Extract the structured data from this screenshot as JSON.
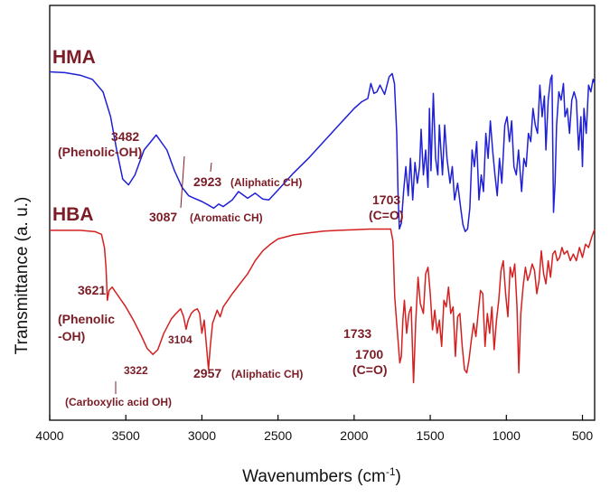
{
  "chart_data": {
    "type": "line",
    "title": "",
    "xlabel": "Wavenumbers (cm",
    "xlabel_sup": "-1",
    "xlabel_close": ")",
    "ylabel": "Transmittance (a. u.)",
    "xlim": [
      4000,
      420
    ],
    "x_ticks": [
      4000,
      3500,
      3000,
      2500,
      2000,
      1500,
      1000,
      500
    ],
    "x_tick_labels": [
      "4000",
      "3500",
      "3000",
      "2500",
      "2000",
      "1500",
      "1000",
      "500"
    ],
    "y_units": "arbitrary (offset, no tick labels)",
    "series": [
      {
        "name": "HMA",
        "color": "#1f1fd6",
        "points": [
          [
            4000,
            0.6
          ],
          [
            3900,
            0.7
          ],
          [
            3800,
            1.0
          ],
          [
            3720,
            1.5
          ],
          [
            3650,
            3.0
          ],
          [
            3600,
            6.0
          ],
          [
            3560,
            10.0
          ],
          [
            3520,
            13.5
          ],
          [
            3482,
            14.2
          ],
          [
            3440,
            13.0
          ],
          [
            3380,
            10.0
          ],
          [
            3300,
            8.2
          ],
          [
            3230,
            10.0
          ],
          [
            3180,
            12.5
          ],
          [
            3130,
            14.5
          ],
          [
            3087,
            15.5
          ],
          [
            3050,
            15.8
          ],
          [
            3000,
            16.2
          ],
          [
            2960,
            16.6
          ],
          [
            2923,
            17.0
          ],
          [
            2890,
            16.5
          ],
          [
            2860,
            16.8
          ],
          [
            2800,
            16.0
          ],
          [
            2760,
            15.0
          ],
          [
            2700,
            15.8
          ],
          [
            2650,
            15.2
          ],
          [
            2600,
            15.9
          ],
          [
            2560,
            16.0
          ],
          [
            2500,
            14.8
          ],
          [
            2400,
            12.8
          ],
          [
            2300,
            11.0
          ],
          [
            2200,
            9.0
          ],
          [
            2100,
            7.0
          ],
          [
            2000,
            5.0
          ],
          [
            1950,
            4.2
          ],
          [
            1910,
            3.8
          ],
          [
            1890,
            2.0
          ],
          [
            1870,
            3.2
          ],
          [
            1850,
            3.0
          ],
          [
            1830,
            2.2
          ],
          [
            1800,
            3.3
          ],
          [
            1770,
            1.2
          ],
          [
            1750,
            0.8
          ],
          [
            1735,
            2.0
          ],
          [
            1720,
            8.0
          ],
          [
            1712,
            15.0
          ],
          [
            1703,
            19.5
          ],
          [
            1690,
            18.8
          ],
          [
            1675,
            15.0
          ],
          [
            1660,
            12.0
          ],
          [
            1645,
            15.5
          ],
          [
            1630,
            11.0
          ],
          [
            1615,
            16.0
          ],
          [
            1600,
            11.5
          ],
          [
            1585,
            14.0
          ],
          [
            1570,
            12.0
          ],
          [
            1560,
            7.5
          ],
          [
            1545,
            13.0
          ],
          [
            1530,
            10.0
          ],
          [
            1515,
            14.5
          ],
          [
            1505,
            5.0
          ],
          [
            1495,
            12.5
          ],
          [
            1480,
            3.2
          ],
          [
            1465,
            11.0
          ],
          [
            1450,
            13.0
          ],
          [
            1440,
            7.0
          ],
          [
            1420,
            13.0
          ],
          [
            1405,
            7.0
          ],
          [
            1390,
            11.0
          ],
          [
            1370,
            14.0
          ],
          [
            1355,
            12.0
          ],
          [
            1340,
            16.0
          ],
          [
            1320,
            14.0
          ],
          [
            1300,
            17.0
          ],
          [
            1285,
            19.0
          ],
          [
            1270,
            19.8
          ],
          [
            1255,
            19.5
          ],
          [
            1240,
            17.0
          ],
          [
            1225,
            10.0
          ],
          [
            1210,
            12.0
          ],
          [
            1195,
            9.0
          ],
          [
            1180,
            16.0
          ],
          [
            1165,
            13.0
          ],
          [
            1150,
            15.0
          ],
          [
            1135,
            8.0
          ],
          [
            1120,
            11.0
          ],
          [
            1105,
            6.5
          ],
          [
            1090,
            10.0
          ],
          [
            1075,
            13.0
          ],
          [
            1060,
            15.5
          ],
          [
            1045,
            11.0
          ],
          [
            1030,
            14.0
          ],
          [
            1010,
            7.0
          ],
          [
            995,
            6.0
          ],
          [
            980,
            9.0
          ],
          [
            965,
            6.5
          ],
          [
            950,
            12.0
          ],
          [
            935,
            13.0
          ],
          [
            920,
            10.0
          ],
          [
            900,
            15.0
          ],
          [
            885,
            11.0
          ],
          [
            870,
            12.0
          ],
          [
            855,
            8.0
          ],
          [
            840,
            9.0
          ],
          [
            825,
            5.0
          ],
          [
            810,
            7.0
          ],
          [
            795,
            8.0
          ],
          [
            780,
            2.2
          ],
          [
            765,
            6.0
          ],
          [
            750,
            3.5
          ],
          [
            740,
            10.0
          ],
          [
            725,
            4.0
          ],
          [
            710,
            1.5
          ],
          [
            700,
            1.0
          ],
          [
            690,
            17.5
          ],
          [
            680,
            14.0
          ],
          [
            670,
            7.0
          ],
          [
            655,
            3.0
          ],
          [
            640,
            4.0
          ],
          [
            625,
            2.0
          ],
          [
            615,
            6.0
          ],
          [
            600,
            5.0
          ],
          [
            585,
            8.0
          ],
          [
            570,
            4.0
          ],
          [
            555,
            3.0
          ],
          [
            540,
            4.0
          ],
          [
            525,
            10.0
          ],
          [
            510,
            6.0
          ],
          [
            500,
            12.0
          ],
          [
            490,
            5.0
          ],
          [
            475,
            8.0
          ],
          [
            460,
            2.2
          ],
          [
            445,
            3.0
          ],
          [
            430,
            1.5
          ],
          [
            420,
            2.0
          ]
        ]
      },
      {
        "name": "HBA",
        "color": "#d42020",
        "points": [
          [
            4000,
            0.4
          ],
          [
            3900,
            0.4
          ],
          [
            3800,
            0.4
          ],
          [
            3700,
            0.6
          ],
          [
            3660,
            1.0
          ],
          [
            3640,
            3.0
          ],
          [
            3630,
            6.0
          ],
          [
            3621,
            11.0
          ],
          [
            3610,
            9.5
          ],
          [
            3590,
            9.0
          ],
          [
            3560,
            10.0
          ],
          [
            3500,
            12.0
          ],
          [
            3450,
            14.0
          ],
          [
            3400,
            16.3
          ],
          [
            3360,
            18.3
          ],
          [
            3322,
            19.2
          ],
          [
            3290,
            18.5
          ],
          [
            3250,
            16.0
          ],
          [
            3200,
            13.8
          ],
          [
            3170,
            13.0
          ],
          [
            3140,
            12.3
          ],
          [
            3120,
            13.5
          ],
          [
            3104,
            15.4
          ],
          [
            3090,
            14.0
          ],
          [
            3070,
            13.0
          ],
          [
            3050,
            12.5
          ],
          [
            3030,
            12.3
          ],
          [
            3015,
            13.0
          ],
          [
            3000,
            16.0
          ],
          [
            2985,
            14.0
          ],
          [
            2972,
            17.5
          ],
          [
            2957,
            21.5
          ],
          [
            2945,
            18.0
          ],
          [
            2930,
            14.5
          ],
          [
            2900,
            12.5
          ],
          [
            2880,
            13.5
          ],
          [
            2860,
            12.0
          ],
          [
            2800,
            10.0
          ],
          [
            2750,
            8.5
          ],
          [
            2700,
            7.0
          ],
          [
            2650,
            5.0
          ],
          [
            2600,
            3.5
          ],
          [
            2550,
            2.5
          ],
          [
            2500,
            1.7
          ],
          [
            2400,
            1.1
          ],
          [
            2300,
            0.8
          ],
          [
            2200,
            0.5
          ],
          [
            2100,
            0.4
          ],
          [
            2000,
            0.3
          ],
          [
            1900,
            0.2
          ],
          [
            1800,
            0.2
          ],
          [
            1760,
            0.2
          ],
          [
            1745,
            2.0
          ],
          [
            1733,
            10.5
          ],
          [
            1720,
            14.5
          ],
          [
            1700,
            20.5
          ],
          [
            1690,
            19.5
          ],
          [
            1680,
            14.0
          ],
          [
            1670,
            11.0
          ],
          [
            1655,
            16.0
          ],
          [
            1640,
            13.0
          ],
          [
            1625,
            12.0
          ],
          [
            1610,
            23.5
          ],
          [
            1595,
            14.0
          ],
          [
            1580,
            7.5
          ],
          [
            1565,
            11.5
          ],
          [
            1545,
            13.0
          ],
          [
            1530,
            7.0
          ],
          [
            1515,
            6.0
          ],
          [
            1500,
            10.0
          ],
          [
            1485,
            15.5
          ],
          [
            1470,
            12.5
          ],
          [
            1455,
            16.0
          ],
          [
            1440,
            14.0
          ],
          [
            1425,
            18.0
          ],
          [
            1410,
            11.0
          ],
          [
            1395,
            12.0
          ],
          [
            1380,
            9.0
          ],
          [
            1365,
            13.0
          ],
          [
            1350,
            12.0
          ],
          [
            1335,
            19.5
          ],
          [
            1320,
            13.5
          ],
          [
            1305,
            13.0
          ],
          [
            1290,
            18.0
          ],
          [
            1275,
            21.5
          ],
          [
            1260,
            22.0
          ],
          [
            1245,
            20.0
          ],
          [
            1230,
            17.0
          ],
          [
            1215,
            14.5
          ],
          [
            1200,
            16.5
          ],
          [
            1185,
            13.0
          ],
          [
            1170,
            9.5
          ],
          [
            1155,
            10.0
          ],
          [
            1140,
            18.0
          ],
          [
            1125,
            13.0
          ],
          [
            1110,
            16.0
          ],
          [
            1095,
            12.0
          ],
          [
            1080,
            18.5
          ],
          [
            1065,
            14.0
          ],
          [
            1050,
            11.0
          ],
          [
            1035,
            6.5
          ],
          [
            1020,
            5.0
          ],
          [
            1005,
            10.0
          ],
          [
            990,
            13.5
          ],
          [
            975,
            6.0
          ],
          [
            960,
            7.5
          ],
          [
            945,
            5.5
          ],
          [
            930,
            12.0
          ],
          [
            918,
            22.0
          ],
          [
            905,
            13.0
          ],
          [
            890,
            9.0
          ],
          [
            875,
            6.0
          ],
          [
            860,
            8.0
          ],
          [
            845,
            7.0
          ],
          [
            830,
            5.5
          ],
          [
            815,
            6.5
          ],
          [
            800,
            10.0
          ],
          [
            785,
            8.0
          ],
          [
            770,
            3.5
          ],
          [
            755,
            7.0
          ],
          [
            740,
            8.5
          ],
          [
            725,
            5.0
          ],
          [
            710,
            7.5
          ],
          [
            695,
            4.0
          ],
          [
            680,
            3.5
          ],
          [
            665,
            5.0
          ],
          [
            650,
            4.5
          ],
          [
            635,
            3.0
          ],
          [
            620,
            4.0
          ],
          [
            600,
            3.5
          ],
          [
            580,
            5.0
          ],
          [
            560,
            4.0
          ],
          [
            540,
            5.0
          ],
          [
            520,
            3.0
          ],
          [
            500,
            4.5
          ],
          [
            480,
            2.5
          ],
          [
            460,
            3.0
          ],
          [
            440,
            1.5
          ],
          [
            425,
            0.5
          ],
          [
            420,
            0.3
          ]
        ]
      }
    ],
    "series_labels": [
      "HMA",
      "HBA"
    ],
    "annotations": [
      {
        "id": "hma-3482",
        "lines": [
          "3482",
          "(Phenolic-OH)"
        ]
      },
      {
        "id": "hma-3087",
        "lines": [
          "3087"
        ],
        "suffix": "(Aromatic CH)"
      },
      {
        "id": "hma-2923",
        "lines": [
          "2923"
        ],
        "suffix": "(Aliphatic CH)"
      },
      {
        "id": "hma-1703",
        "lines": [
          "1703",
          "(C=O)"
        ]
      },
      {
        "id": "hba-3621",
        "lines": [
          "3621",
          "(Phenolic",
          "-OH)"
        ]
      },
      {
        "id": "hba-3104",
        "lines": [
          "3104"
        ]
      },
      {
        "id": "hba-3322",
        "lines": [
          "3322",
          "(Carboxylic acid OH)"
        ]
      },
      {
        "id": "hba-2957",
        "lines": [
          "2957"
        ],
        "suffix": "(Aliphatic CH)"
      },
      {
        "id": "hba-1733",
        "lines": [
          "1733"
        ]
      },
      {
        "id": "hba-1700",
        "lines": [
          "1700",
          "(C=O)"
        ]
      }
    ]
  }
}
